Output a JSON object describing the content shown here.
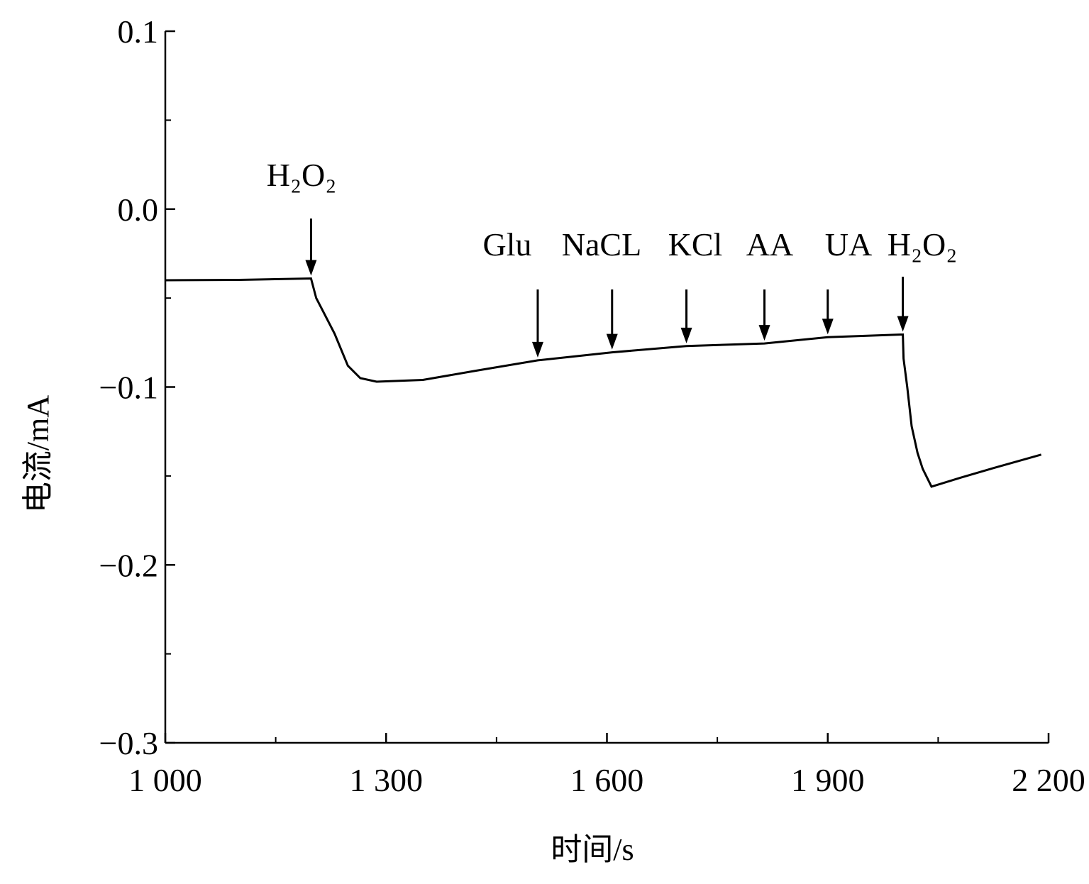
{
  "chart_data": {
    "type": "line",
    "title": "",
    "xlabel": "时间/s",
    "ylabel": "电流/mA",
    "xlim": [
      1000,
      2200
    ],
    "ylim": [
      -0.3,
      0.1
    ],
    "xticks": [
      1000,
      1300,
      1600,
      1900,
      2200
    ],
    "xtick_labels": [
      "1 000",
      "1 300",
      "1 600",
      "1 900",
      "2 200"
    ],
    "yticks": [
      0.1,
      0.0,
      -0.1,
      -0.2,
      -0.3
    ],
    "ytick_labels": [
      "0.1",
      "0.0",
      "−0.1",
      "−0.2",
      "−0.3"
    ],
    "grid": false,
    "series": [
      {
        "name": "current",
        "x": [
          1000,
          1100,
          1198,
          1205,
          1215,
          1230,
          1248,
          1265,
          1287,
          1350,
          1420,
          1506,
          1607,
          1708,
          1814,
          1900,
          2002,
          2003,
          2008,
          2014,
          2022,
          2029,
          2041,
          2080,
          2130,
          2190
        ],
        "y": [
          -0.04,
          -0.0398,
          -0.039,
          -0.05,
          -0.058,
          -0.07,
          -0.088,
          -0.095,
          -0.097,
          -0.096,
          -0.091,
          -0.085,
          -0.0805,
          -0.077,
          -0.0755,
          -0.072,
          -0.0705,
          -0.084,
          -0.1,
          -0.122,
          -0.137,
          -0.146,
          -0.156,
          -0.151,
          -0.145,
          -0.138
        ]
      }
    ],
    "annotations": [
      {
        "label": "H₂O₂",
        "x": 1198
      },
      {
        "label": "Glu",
        "x": 1506
      },
      {
        "label": "NaCL",
        "x": 1607
      },
      {
        "label": "KCl",
        "x": 1708
      },
      {
        "label": "AA",
        "x": 1814
      },
      {
        "label": "UA",
        "x": 1900
      },
      {
        "label": "H₂O₂",
        "x": 2002
      }
    ]
  }
}
